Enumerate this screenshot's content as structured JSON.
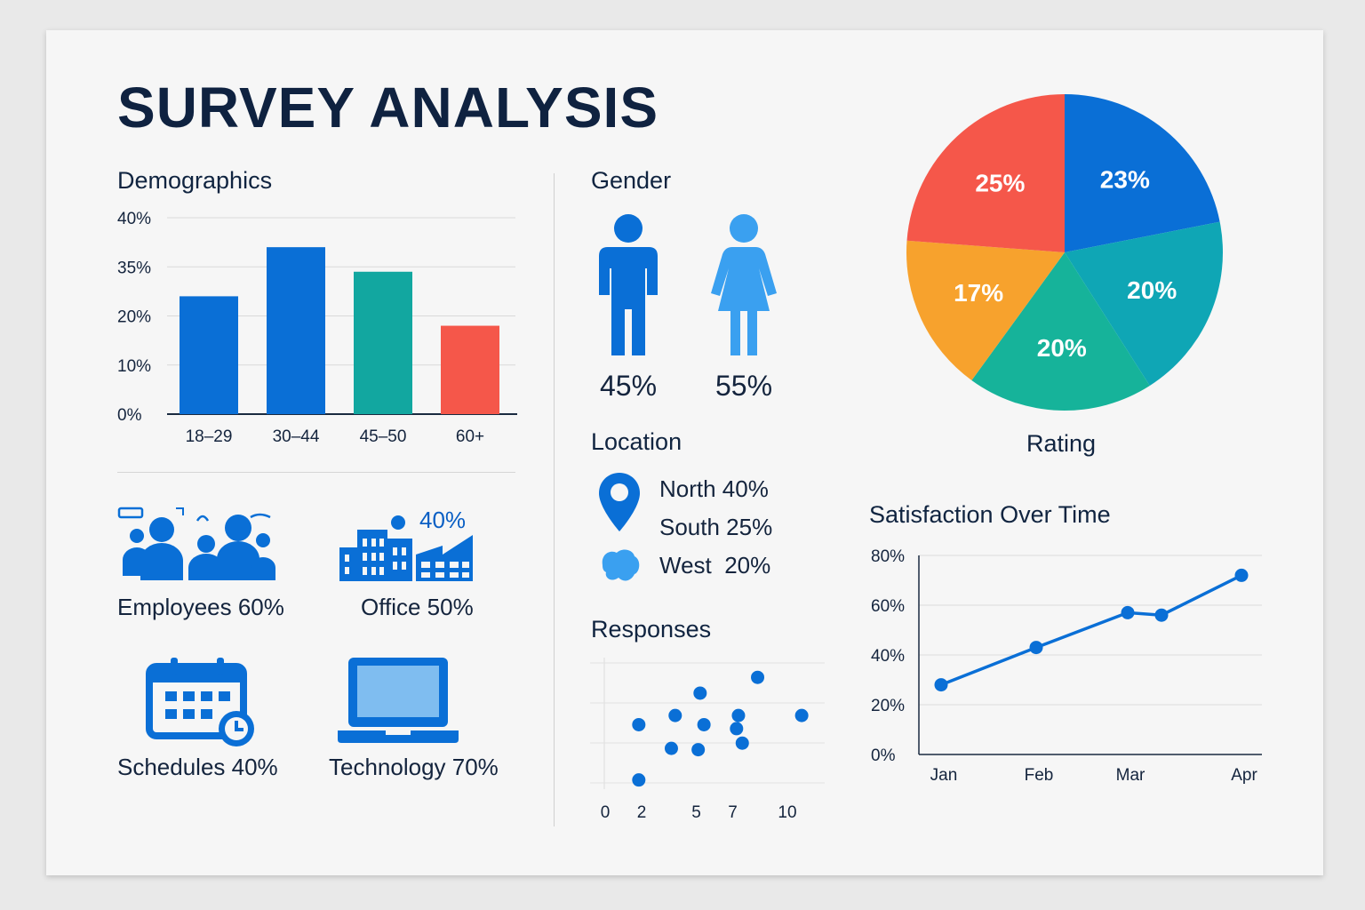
{
  "title": "SURVEY ANALYSIS",
  "colors": {
    "blue": "#0a6fd6",
    "teal": "#12a7a0",
    "red": "#f5574a",
    "orange": "#f7a22d",
    "light_blue": "#3aa0f0",
    "dark_text": "#0f2240"
  },
  "demographics": {
    "heading": "Demographics"
  },
  "gender": {
    "heading": "Gender",
    "male_pct": "45%",
    "female_pct": "55%",
    "male_icon": "male-person-icon",
    "female_icon": "female-person-icon"
  },
  "location": {
    "heading": "Location",
    "items": [
      {
        "label": "North 40%",
        "icon": "map-pin-icon"
      },
      {
        "label": "South 25%"
      },
      {
        "label": "West  20%",
        "icon": "region-blob-icon"
      }
    ]
  },
  "responses": {
    "heading": "Responses"
  },
  "rating": {
    "caption": "Rating"
  },
  "satisfaction": {
    "heading": "Satisfaction Over Time"
  },
  "icon_stats": [
    {
      "label": "Employees 60%",
      "icon": "people-group-icon"
    },
    {
      "label": "Office 50%",
      "icon": "office-buildings-icon",
      "badge": "40%"
    },
    {
      "label": "Schedules 40%",
      "icon": "calendar-clock-icon"
    },
    {
      "label": "Technology 70%",
      "icon": "laptop-icon"
    }
  ],
  "chart_data": [
    {
      "id": "demographics",
      "type": "bar",
      "title": "Demographics",
      "categories": [
        "18–29",
        "30–44",
        "45–50",
        "60+"
      ],
      "values": [
        24,
        34,
        29,
        18
      ],
      "colors": [
        "#0a6fd6",
        "#0a6fd6",
        "#12a7a0",
        "#f5574a"
      ],
      "yticks": [
        "40%",
        "35%",
        "20%",
        "10%",
        "0%"
      ],
      "grid": true
    },
    {
      "id": "rating",
      "type": "pie",
      "title": "Rating",
      "slices": [
        {
          "label": "23%",
          "value": 23,
          "color": "#0a6fd6"
        },
        {
          "label": "20%",
          "value": 20,
          "color": "#0fa6b5"
        },
        {
          "label": "20%",
          "value": 20,
          "color": "#16b39a"
        },
        {
          "label": "17%",
          "value": 17,
          "color": "#f7a22d"
        },
        {
          "label": "25%",
          "value": 25,
          "color": "#f5574a"
        }
      ]
    },
    {
      "id": "responses",
      "type": "scatter",
      "title": "Responses",
      "xticks": [
        "0",
        "2",
        "5",
        "7",
        "10"
      ],
      "points": [
        [
          1.8,
          4.9
        ],
        [
          1.8,
          0.7
        ],
        [
          3.7,
          5.6
        ],
        [
          3.5,
          3.1
        ],
        [
          5.0,
          7.3
        ],
        [
          4.9,
          3.0
        ],
        [
          5.2,
          4.9
        ],
        [
          7.0,
          5.6
        ],
        [
          6.9,
          4.6
        ],
        [
          7.2,
          3.5
        ],
        [
          8.0,
          8.5
        ],
        [
          10.3,
          5.6
        ]
      ],
      "xlim": [
        0,
        11.5
      ],
      "ylim": [
        0,
        10
      ]
    },
    {
      "id": "satisfaction",
      "type": "line",
      "title": "Satisfaction Over Time",
      "categories": [
        "Jan",
        "Feb",
        "Mar",
        "Apr"
      ],
      "yticks": [
        "80%",
        "60%",
        "40%",
        "20%",
        "0%"
      ],
      "points": [
        {
          "x": "Jan",
          "y": 28
        },
        {
          "x": "Feb",
          "y": 43
        },
        {
          "x": "Mar",
          "y": 57
        },
        {
          "x": "Mar",
          "y": 56
        },
        {
          "x": "Apr",
          "y": 72
        }
      ],
      "ylim": [
        0,
        80
      ]
    }
  ]
}
